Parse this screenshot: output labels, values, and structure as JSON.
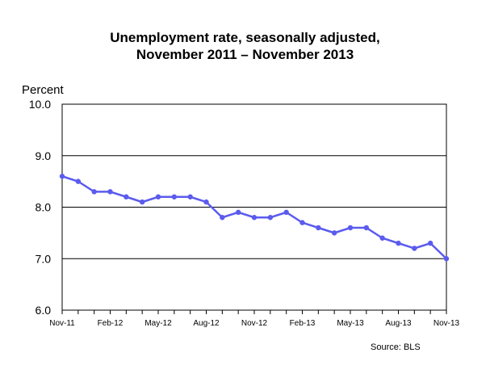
{
  "chart_data": {
    "type": "line",
    "title": [
      "Unemployment rate, seasonally adjusted,",
      "November 2011 – November 2013"
    ],
    "ylabel": "Percent",
    "xlabel": "",
    "source": "Source:  BLS",
    "ylim": [
      6.0,
      10.0
    ],
    "yticks": [
      "6.0",
      "7.0",
      "8.0",
      "9.0",
      "10.0"
    ],
    "xtick_labels": [
      "Nov-11",
      "Feb-12",
      "May-12",
      "Aug-12",
      "Nov-12",
      "Feb-13",
      "May-13",
      "Aug-13",
      "Nov-13"
    ],
    "categories": [
      "Nov-11",
      "Dec-11",
      "Jan-12",
      "Feb-12",
      "Mar-12",
      "Apr-12",
      "May-12",
      "Jun-12",
      "Jul-12",
      "Aug-12",
      "Sep-12",
      "Oct-12",
      "Nov-12",
      "Dec-12",
      "Jan-13",
      "Feb-13",
      "Mar-13",
      "Apr-13",
      "May-13",
      "Jun-13",
      "Jul-13",
      "Aug-13",
      "Sep-13",
      "Oct-13",
      "Nov-13"
    ],
    "series": [
      {
        "name": "Unemployment rate",
        "color": "#5b5bef",
        "values": [
          8.6,
          8.5,
          8.3,
          8.3,
          8.2,
          8.1,
          8.2,
          8.2,
          8.2,
          8.1,
          7.8,
          7.9,
          7.8,
          7.8,
          7.9,
          7.7,
          7.6,
          7.5,
          7.6,
          7.6,
          7.4,
          7.3,
          7.2,
          7.3,
          7.0
        ]
      }
    ],
    "grid": true
  }
}
